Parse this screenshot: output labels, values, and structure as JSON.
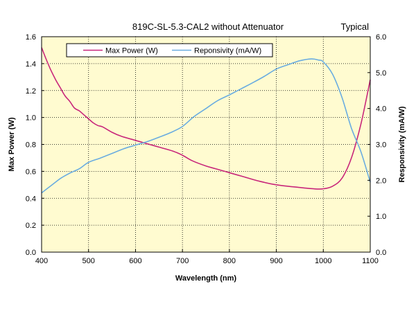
{
  "chart_data": {
    "type": "line",
    "title": "819C-SL-5.3-CAL2 without Attenuator",
    "subtitle": "Typical",
    "xlabel": "Wavelength (nm)",
    "ylabel_left": "Max Power (W)",
    "ylabel_right": "Responsivity  (mA/W)",
    "xlim": [
      400,
      1100
    ],
    "ylim_left": [
      0,
      1.6
    ],
    "ylim_right": [
      0,
      6.0
    ],
    "x_ticks": [
      "400",
      "500",
      "600",
      "700",
      "800",
      "900",
      "1000",
      "1100"
    ],
    "y_left_ticks": [
      "0.0",
      "0.2",
      "0.4",
      "0.6",
      "0.8",
      "1.0",
      "1.2",
      "1.4",
      "1.6"
    ],
    "y_right_ticks": [
      "0.0",
      "1.0",
      "2.0",
      "3.0",
      "4.0",
      "5.0",
      "6.0"
    ],
    "grid": true,
    "legend_position": "top-left",
    "colors": {
      "plot_background": "#fffbd0",
      "grid": "#000000",
      "max_power": "#c8267a",
      "responsivity": "#6aace0"
    },
    "series": [
      {
        "name": "Max Power (W)",
        "axis": "left",
        "x": [
          400,
          410,
          420,
          430,
          440,
          450,
          460,
          470,
          480,
          490,
          500,
          510,
          520,
          530,
          550,
          570,
          600,
          620,
          650,
          680,
          700,
          720,
          750,
          770,
          800,
          830,
          860,
          900,
          950,
          980,
          1000,
          1020,
          1040,
          1060,
          1080,
          1100
        ],
        "values": [
          1.52,
          1.43,
          1.35,
          1.28,
          1.22,
          1.16,
          1.12,
          1.07,
          1.05,
          1.02,
          0.99,
          0.96,
          0.94,
          0.93,
          0.89,
          0.86,
          0.83,
          0.81,
          0.78,
          0.75,
          0.72,
          0.68,
          0.64,
          0.62,
          0.59,
          0.56,
          0.53,
          0.5,
          0.48,
          0.47,
          0.47,
          0.49,
          0.55,
          0.7,
          0.95,
          1.28
        ]
      },
      {
        "name": "Reponsivity  (mA/W)",
        "axis": "right",
        "x": [
          400,
          420,
          440,
          460,
          480,
          500,
          525,
          550,
          575,
          600,
          625,
          650,
          675,
          700,
          725,
          750,
          775,
          800,
          825,
          850,
          875,
          900,
          925,
          950,
          975,
          990,
          1000,
          1020,
          1040,
          1060,
          1080,
          1100
        ],
        "values": [
          1.65,
          1.85,
          2.05,
          2.2,
          2.32,
          2.5,
          2.62,
          2.75,
          2.88,
          2.98,
          3.08,
          3.2,
          3.33,
          3.5,
          3.78,
          4.0,
          4.22,
          4.38,
          4.55,
          4.72,
          4.9,
          5.1,
          5.22,
          5.33,
          5.38,
          5.35,
          5.3,
          4.95,
          4.3,
          3.45,
          2.8,
          1.95
        ]
      }
    ]
  }
}
